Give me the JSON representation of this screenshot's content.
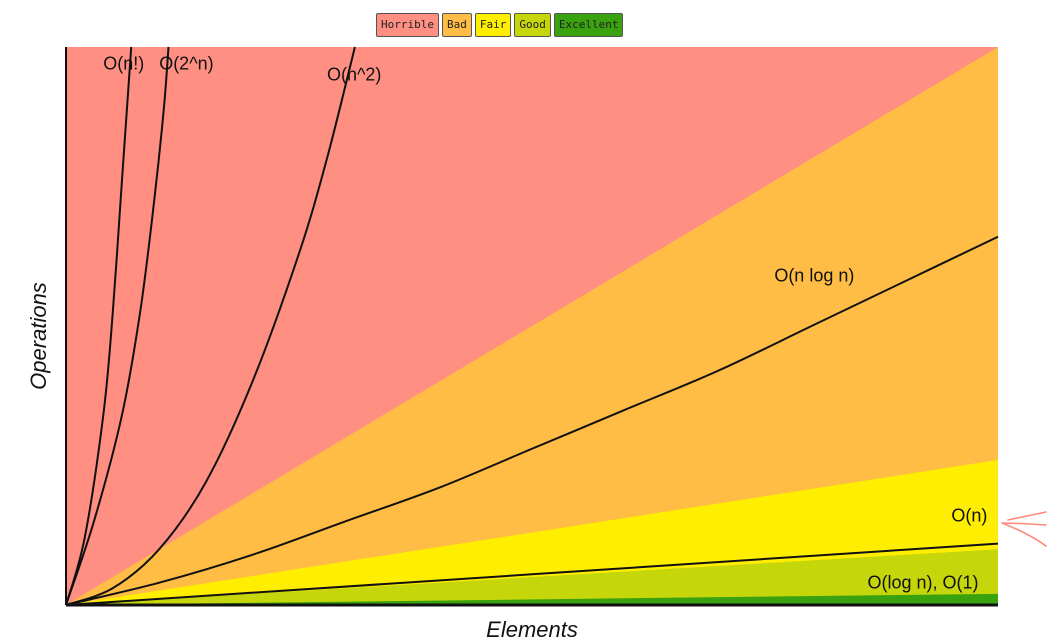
{
  "chart_data": {
    "type": "line",
    "title": "",
    "xlabel": "Elements",
    "ylabel": "Operations",
    "xlim": [
      0,
      10
    ],
    "ylim": [
      0,
      10
    ],
    "grid": false,
    "legend": {
      "placement": "top-center",
      "items": [
        {
          "label": "Horrible",
          "color": "#ff8f82"
        },
        {
          "label": "Bad",
          "color": "#ffbd45"
        },
        {
          "label": "Fair",
          "color": "#ffee00"
        },
        {
          "label": "Good",
          "color": "#c5d60b"
        },
        {
          "label": "Excellent",
          "color": "#3aa10f"
        }
      ]
    },
    "regions": [
      {
        "name": "Horrible",
        "color": "#ff8f82",
        "upper_slope": null
      },
      {
        "name": "Bad",
        "color": "#ffbd45",
        "upper_slope": 1.0
      },
      {
        "name": "Fair",
        "color": "#ffee00",
        "upper_slope": 0.26
      },
      {
        "name": "Good",
        "color": "#c5d60b",
        "upper_slope": 0.1
      },
      {
        "name": "Excellent",
        "color": "#3aa10f",
        "upper_slope": 0.02
      }
    ],
    "series": [
      {
        "name": "O(n!)",
        "x": [
          0,
          0.2,
          0.4,
          0.5,
          0.6,
          0.65,
          0.7
        ],
        "y": [
          0,
          1.2,
          3.4,
          5.2,
          7.6,
          8.8,
          10
        ]
      },
      {
        "name": "O(2^n)",
        "x": [
          0,
          0.3,
          0.6,
          0.8,
          0.95,
          1.05,
          1.1
        ],
        "y": [
          0,
          1.5,
          3.4,
          5.3,
          7.3,
          8.9,
          10
        ]
      },
      {
        "name": "O(n^2)",
        "x": [
          0,
          0.5,
          1,
          1.5,
          2,
          2.5,
          2.8,
          3.1
        ],
        "y": [
          0,
          0.3,
          1.0,
          2.2,
          4.0,
          6.3,
          8.0,
          10
        ]
      },
      {
        "name": "O(n log n)",
        "x": [
          0,
          1,
          2,
          3,
          4,
          5,
          6,
          7,
          8,
          9,
          10
        ],
        "y": [
          0,
          0.4,
          0.9,
          1.5,
          2.1,
          2.8,
          3.5,
          4.2,
          5.0,
          5.8,
          6.6
        ]
      },
      {
        "name": "O(n)",
        "x": [
          0,
          10
        ],
        "y": [
          0,
          1.1
        ]
      },
      {
        "name": "O(log n), O(1)",
        "x": [
          0,
          10
        ],
        "y": [
          0,
          0.0
        ]
      }
    ],
    "annotations": [
      {
        "text": "O(n!)",
        "x": 0.4,
        "y": 9.6
      },
      {
        "text": "O(2^n)",
        "x": 1.0,
        "y": 9.6
      },
      {
        "text": "O(n^2)",
        "x": 2.8,
        "y": 9.4
      },
      {
        "text": "O(n log n)",
        "x": 7.6,
        "y": 5.8
      },
      {
        "text": "O(n)",
        "x": 9.5,
        "y": 1.5
      },
      {
        "text": "O(log n), O(1)",
        "x": 8.6,
        "y": 0.3
      }
    ]
  }
}
